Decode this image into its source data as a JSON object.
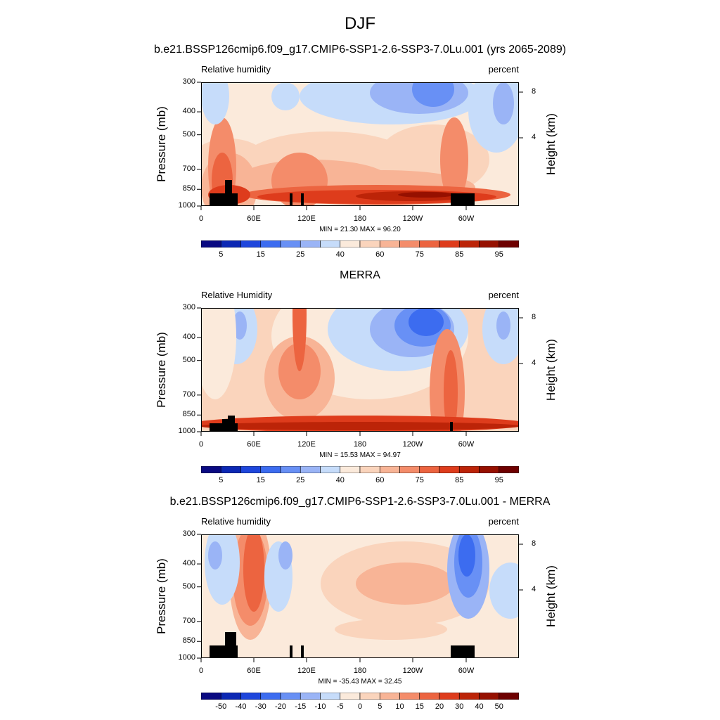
{
  "main_title": "DJF",
  "colors": {
    "rh_palette": [
      "#0a0a82",
      "#0c28b4",
      "#1e46dc",
      "#3c6cf0",
      "#6890f5",
      "#9ab4f6",
      "#c6dcfa",
      "#fbeadb",
      "#fad4bc",
      "#f8b496",
      "#f48c6a",
      "#ec6440",
      "#de3c1c",
      "#bc2408",
      "#961000",
      "#6e0000"
    ],
    "diff_palette": [
      "#0a0a82",
      "#0c28b4",
      "#1e46dc",
      "#3c6cf0",
      "#6890f5",
      "#9ab4f6",
      "#c6dcfa",
      "#fbeadb",
      "#fad4bc",
      "#f8b496",
      "#f48c6a",
      "#ec6440",
      "#de3c1c",
      "#bc2408",
      "#961000",
      "#6e0000"
    ],
    "topography": "#000000"
  },
  "chart_data": [
    {
      "type": "heatmap",
      "title": "b.e21.BSSP126cmip6.f09_g17.CMIP6-SSP1-2.6-SSP3-7.0Lu.001 (yrs 2065-2089)",
      "left_label": "Relative humidity",
      "right_label": "percent",
      "ylabel": "Pressure (mb)",
      "y2label": "Height (km)",
      "x_ticks": [
        "0",
        "60E",
        "120E",
        "180",
        "120W",
        "60W"
      ],
      "y_ticks": [
        "300",
        "400",
        "500",
        "700",
        "850",
        "1000"
      ],
      "y2_ticks": [
        "8",
        "4"
      ],
      "minmax": "MIN =  21.30  MAX =  96.20",
      "colorbar_labels": [
        "5",
        "15",
        "25",
        "40",
        "60",
        "75",
        "85",
        "95"
      ],
      "min": 21.3,
      "max": 96.2
    },
    {
      "type": "heatmap",
      "title": "MERRA",
      "left_label": "Relative Humidity",
      "right_label": "percent",
      "ylabel": "Pressure (mb)",
      "y2label": "Height (km)",
      "x_ticks": [
        "0",
        "60E",
        "120E",
        "180",
        "120W",
        "60W"
      ],
      "y_ticks": [
        "300",
        "400",
        "500",
        "700",
        "850",
        "1000"
      ],
      "y2_ticks": [
        "8",
        "4"
      ],
      "minmax": "MIN =  15.53  MAX =  94.97",
      "colorbar_labels": [
        "5",
        "15",
        "25",
        "40",
        "60",
        "75",
        "85",
        "95"
      ],
      "min": 15.53,
      "max": 94.97
    },
    {
      "type": "heatmap",
      "title": "b.e21.BSSP126cmip6.f09_g17.CMIP6-SSP1-2.6-SSP3-7.0Lu.001 - MERRA",
      "left_label": "Relative humidity",
      "right_label": "percent",
      "ylabel": "Pressure (mb)",
      "y2label": "Height (km)",
      "x_ticks": [
        "0",
        "60E",
        "120E",
        "180",
        "120W",
        "60W"
      ],
      "y_ticks": [
        "300",
        "400",
        "500",
        "700",
        "850",
        "1000"
      ],
      "y2_ticks": [
        "8",
        "4"
      ],
      "minmax": "MIN = -35.43  MAX =  32.45",
      "colorbar_labels": [
        "-50",
        "-40",
        "-30",
        "-20",
        "-15",
        "-10",
        "-5",
        "0",
        "5",
        "10",
        "15",
        "20",
        "30",
        "40",
        "50"
      ],
      "min": -35.43,
      "max": 32.45
    }
  ]
}
